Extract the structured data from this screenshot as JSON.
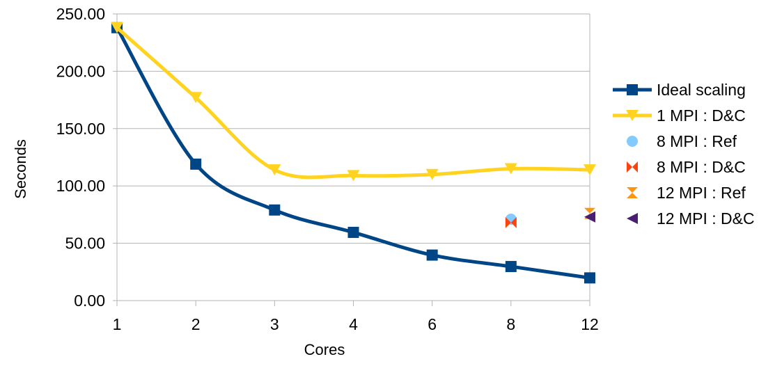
{
  "chart_data": {
    "type": "line",
    "title": "",
    "xlabel": "Cores",
    "ylabel": "Seconds",
    "categories": [
      "1",
      "2",
      "3",
      "4",
      "6",
      "8",
      "12"
    ],
    "ylim": [
      0,
      250
    ],
    "yticks": [
      "0.00",
      "50.00",
      "100.00",
      "150.00",
      "200.00",
      "250.00"
    ],
    "grid": true,
    "legend_position": "right",
    "series": [
      {
        "name": "Ideal scaling",
        "color": "#004586",
        "marker": "square",
        "line": true,
        "points": [
          [
            0,
            238
          ],
          [
            1,
            119
          ],
          [
            2,
            79
          ],
          [
            3,
            59.5
          ],
          [
            4,
            39.7
          ],
          [
            5,
            29.7
          ],
          [
            6,
            19.8
          ]
        ]
      },
      {
        "name": "1 MPI : D&C",
        "color": "#ffd320",
        "marker": "triangle-down",
        "line": true,
        "points": [
          [
            0,
            238
          ],
          [
            1,
            177
          ],
          [
            2,
            114
          ],
          [
            3,
            109
          ],
          [
            4,
            110
          ],
          [
            5,
            115
          ],
          [
            6,
            114
          ]
        ]
      },
      {
        "name": "8 MPI : Ref",
        "color": "#83caff",
        "marker": "circle",
        "line": false,
        "points": [
          [
            5,
            71
          ]
        ]
      },
      {
        "name": "8 MPI : D&C",
        "color": "#ff420e",
        "marker": "bowtie",
        "line": false,
        "points": [
          [
            5,
            68
          ]
        ]
      },
      {
        "name": "12 MPI : Ref",
        "color": "#ff950e",
        "marker": "hourglass",
        "line": false,
        "points": [
          [
            6,
            76
          ]
        ]
      },
      {
        "name": "12 MPI : D&C",
        "color": "#4b1f6f",
        "marker": "triangle-left",
        "line": false,
        "points": [
          [
            6,
            73
          ]
        ]
      }
    ]
  }
}
